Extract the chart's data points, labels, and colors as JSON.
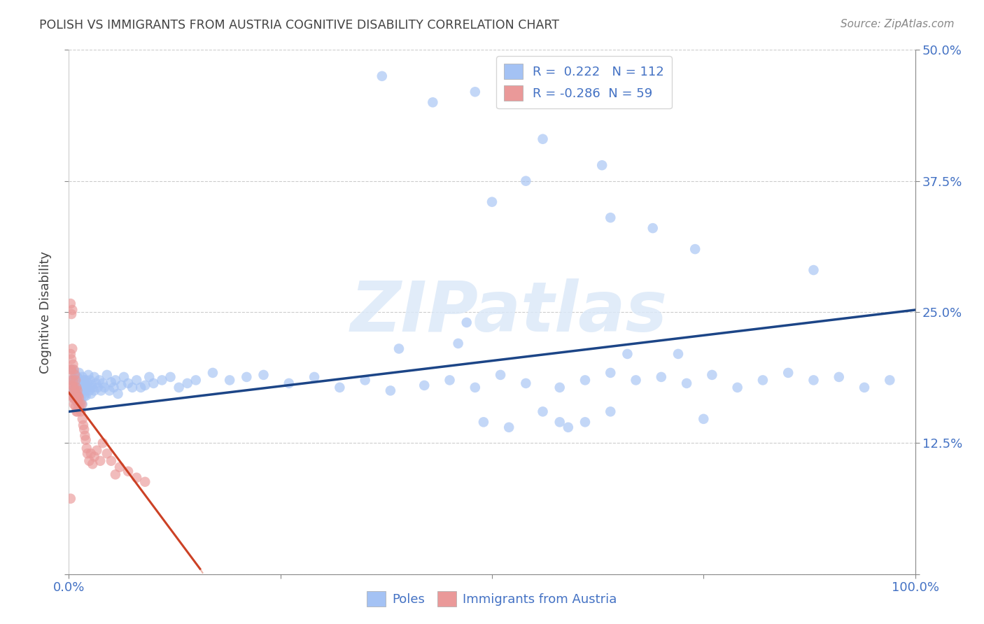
{
  "title": "POLISH VS IMMIGRANTS FROM AUSTRIA COGNITIVE DISABILITY CORRELATION CHART",
  "source": "Source: ZipAtlas.com",
  "ylabel": "Cognitive Disability",
  "watermark": "ZIPatlas",
  "r_poles": 0.222,
  "n_poles": 112,
  "r_austria": -0.286,
  "n_austria": 59,
  "poles_color": "#a4c2f4",
  "austria_color": "#ea9999",
  "poles_line_color": "#1c4587",
  "austria_line_color": "#cc4125",
  "background_color": "#ffffff",
  "grid_color": "#cccccc",
  "title_color": "#434343",
  "axis_label_color": "#434343",
  "tick_label_color": "#4472c4",
  "xlim": [
    0.0,
    1.0
  ],
  "ylim": [
    0.0,
    0.5
  ],
  "poles_trendline": [
    0.0,
    1.0,
    0.155,
    0.252
  ],
  "austria_trendline": [
    0.0,
    0.155,
    0.173,
    0.005
  ],
  "poles_x": [
    0.003,
    0.004,
    0.005,
    0.005,
    0.006,
    0.006,
    0.007,
    0.007,
    0.008,
    0.008,
    0.009,
    0.009,
    0.01,
    0.01,
    0.011,
    0.011,
    0.012,
    0.012,
    0.013,
    0.013,
    0.014,
    0.014,
    0.015,
    0.015,
    0.016,
    0.016,
    0.017,
    0.017,
    0.018,
    0.018,
    0.019,
    0.019,
    0.02,
    0.02,
    0.021,
    0.022,
    0.023,
    0.024,
    0.025,
    0.026,
    0.027,
    0.028,
    0.03,
    0.03,
    0.032,
    0.034,
    0.036,
    0.038,
    0.04,
    0.042,
    0.045,
    0.048,
    0.05,
    0.053,
    0.055,
    0.058,
    0.062,
    0.065,
    0.07,
    0.075,
    0.08,
    0.085,
    0.09,
    0.095,
    0.1,
    0.11,
    0.12,
    0.13,
    0.14,
    0.15,
    0.17,
    0.19,
    0.21,
    0.23,
    0.26,
    0.29,
    0.32,
    0.35,
    0.38,
    0.42,
    0.45,
    0.48,
    0.51,
    0.54,
    0.58,
    0.61,
    0.64,
    0.67,
    0.7,
    0.73,
    0.76,
    0.79,
    0.82,
    0.85,
    0.88,
    0.91,
    0.94,
    0.97,
    0.46,
    0.39,
    0.66,
    0.72,
    0.56,
    0.58,
    0.64,
    0.52,
    0.49,
    0.61,
    0.75,
    0.59,
    0.47,
    0.43
  ],
  "poles_y": [
    0.185,
    0.175,
    0.195,
    0.175,
    0.185,
    0.168,
    0.182,
    0.175,
    0.19,
    0.17,
    0.175,
    0.165,
    0.188,
    0.172,
    0.18,
    0.168,
    0.192,
    0.174,
    0.178,
    0.185,
    0.165,
    0.178,
    0.182,
    0.17,
    0.188,
    0.162,
    0.18,
    0.175,
    0.185,
    0.17,
    0.175,
    0.18,
    0.17,
    0.185,
    0.178,
    0.182,
    0.19,
    0.175,
    0.185,
    0.172,
    0.18,
    0.178,
    0.188,
    0.175,
    0.182,
    0.178,
    0.185,
    0.175,
    0.182,
    0.178,
    0.19,
    0.175,
    0.183,
    0.178,
    0.185,
    0.172,
    0.18,
    0.188,
    0.182,
    0.178,
    0.185,
    0.178,
    0.18,
    0.188,
    0.182,
    0.185,
    0.188,
    0.178,
    0.182,
    0.185,
    0.192,
    0.185,
    0.188,
    0.19,
    0.182,
    0.188,
    0.178,
    0.185,
    0.175,
    0.18,
    0.185,
    0.178,
    0.19,
    0.182,
    0.178,
    0.185,
    0.192,
    0.185,
    0.188,
    0.182,
    0.19,
    0.178,
    0.185,
    0.192,
    0.185,
    0.188,
    0.178,
    0.185,
    0.22,
    0.215,
    0.21,
    0.21,
    0.155,
    0.145,
    0.155,
    0.14,
    0.145,
    0.145,
    0.148,
    0.14,
    0.24,
    0.45
  ],
  "poles_y_outliers": [
    0.475,
    0.46,
    0.415,
    0.39,
    0.375,
    0.355,
    0.34,
    0.33,
    0.31,
    0.29
  ],
  "poles_x_outliers": [
    0.37,
    0.48,
    0.56,
    0.63,
    0.54,
    0.5,
    0.64,
    0.69,
    0.74,
    0.88
  ],
  "austria_x": [
    0.002,
    0.002,
    0.002,
    0.003,
    0.003,
    0.003,
    0.004,
    0.004,
    0.004,
    0.005,
    0.005,
    0.005,
    0.006,
    0.006,
    0.006,
    0.007,
    0.007,
    0.007,
    0.008,
    0.008,
    0.008,
    0.009,
    0.009,
    0.009,
    0.01,
    0.01,
    0.01,
    0.011,
    0.011,
    0.012,
    0.012,
    0.013,
    0.014,
    0.015,
    0.016,
    0.017,
    0.018,
    0.019,
    0.02,
    0.021,
    0.022,
    0.024,
    0.026,
    0.028,
    0.03,
    0.033,
    0.037,
    0.04,
    0.045,
    0.05,
    0.055,
    0.06,
    0.07,
    0.08,
    0.09,
    0.002,
    0.003,
    0.004,
    0.002
  ],
  "austria_y": [
    0.21,
    0.195,
    0.185,
    0.205,
    0.178,
    0.195,
    0.215,
    0.18,
    0.17,
    0.2,
    0.185,
    0.168,
    0.195,
    0.178,
    0.162,
    0.19,
    0.175,
    0.168,
    0.185,
    0.172,
    0.16,
    0.178,
    0.168,
    0.155,
    0.175,
    0.165,
    0.155,
    0.17,
    0.162,
    0.168,
    0.158,
    0.162,
    0.155,
    0.162,
    0.148,
    0.142,
    0.138,
    0.132,
    0.128,
    0.12,
    0.115,
    0.108,
    0.115,
    0.105,
    0.112,
    0.118,
    0.108,
    0.125,
    0.115,
    0.108,
    0.095,
    0.102,
    0.098,
    0.092,
    0.088,
    0.258,
    0.248,
    0.252,
    0.072
  ]
}
